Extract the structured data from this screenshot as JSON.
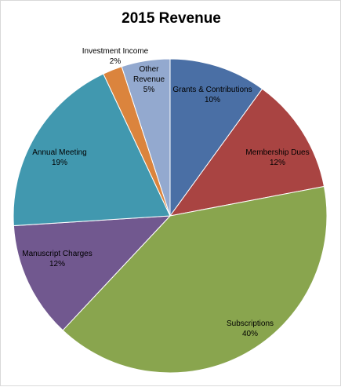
{
  "chart_data": {
    "type": "pie",
    "title": "2015 Revenue",
    "slices": [
      {
        "name": "Grants & Contributions",
        "percent_label": "10%",
        "value": 10,
        "color": "#4a6fa5"
      },
      {
        "name": "Membership Dues",
        "percent_label": "12%",
        "value": 12,
        "color": "#a94442"
      },
      {
        "name": "Subscriptions",
        "percent_label": "40%",
        "value": 40,
        "color": "#89a54e"
      },
      {
        "name": "Manuscript Charges",
        "percent_label": "12%",
        "value": 12,
        "color": "#71588f"
      },
      {
        "name": "Annual Meeting",
        "percent_label": "19%",
        "value": 19,
        "color": "#4198af"
      },
      {
        "name": "Investment Income",
        "percent_label": "2%",
        "value": 2,
        "color": "#db843d"
      },
      {
        "name": "Other Revenue",
        "percent_label": "5%",
        "value": 5,
        "color": "#93a9cf"
      }
    ],
    "legend": "none",
    "data_labels": "inside-slices"
  }
}
